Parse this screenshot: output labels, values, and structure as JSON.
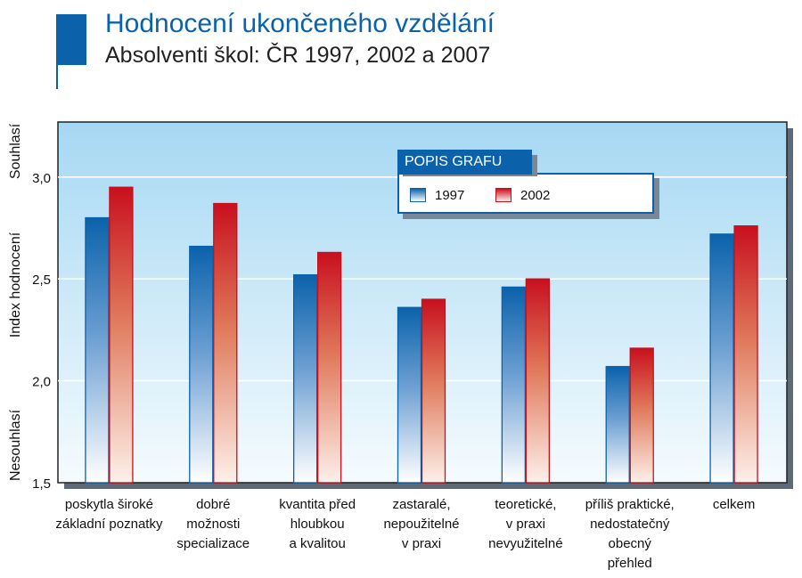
{
  "header": {
    "title": "Hodnocení ukončeného vzdělání",
    "subtitle": "Absolventi škol: ČR 1997, 2002 a 2007"
  },
  "legend": {
    "heading": "POPIS GRAFU",
    "items": [
      {
        "label": "1997",
        "color": "#0b62ab"
      },
      {
        "label": "2002",
        "color": "#c8101e"
      }
    ]
  },
  "chart_data": {
    "type": "bar",
    "title": "Hodnocení ukončeného vzdělání",
    "subtitle": "Absolventi škol: ČR 1997, 2002 a 2007",
    "ylabel": "Index hodnocení",
    "y_top_label": "Souhlasí",
    "y_bottom_label": "Nesouhlasí",
    "ylim": [
      1.5,
      3.27
    ],
    "yticks": [
      "1,5",
      "2,0",
      "2,5",
      "3,0"
    ],
    "ytick_values": [
      1.5,
      2.0,
      2.5,
      3.0
    ],
    "grid": true,
    "legend_position": "top-right",
    "categories": [
      [
        "poskytla široké",
        "základní poznatky"
      ],
      [
        "dobré",
        "možnosti",
        "specializace"
      ],
      [
        "kvantita před",
        "hloubkou",
        "a kvalitou"
      ],
      [
        "zastaralé,",
        "nepoužitelné",
        "v praxi"
      ],
      [
        "teoretické,",
        "v praxi",
        "nevyužitelné"
      ],
      [
        "příliš praktické,",
        "nedostatečný",
        "obecný",
        "přehled"
      ],
      [
        "celkem"
      ]
    ],
    "series": [
      {
        "name": "1997",
        "color": "#0b62ab",
        "values": [
          2.8,
          2.66,
          2.52,
          2.36,
          2.46,
          2.07,
          2.72
        ]
      },
      {
        "name": "2002",
        "color": "#c8101e",
        "values": [
          2.95,
          2.87,
          2.63,
          2.4,
          2.5,
          2.16,
          2.76
        ]
      }
    ]
  }
}
